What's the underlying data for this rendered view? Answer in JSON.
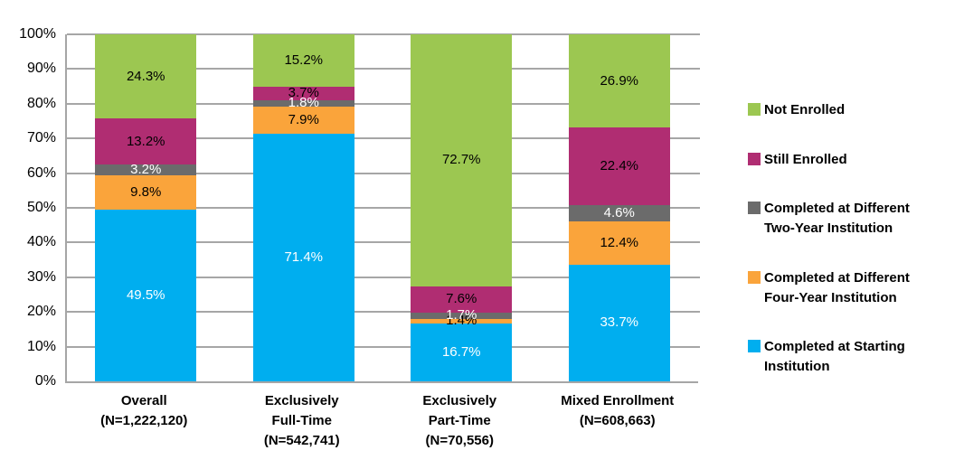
{
  "chart_data": {
    "type": "bar",
    "variant": "stacked-100-percent",
    "title": "",
    "xlabel": "",
    "ylabel": "",
    "grid": true,
    "legend_position": "right",
    "y_axis": {
      "min": 0,
      "max": 100,
      "step": 10,
      "tick_labels": [
        "0%",
        "10%",
        "20%",
        "30%",
        "40%",
        "50%",
        "60%",
        "70%",
        "80%",
        "90%",
        "100%"
      ]
    },
    "categories": [
      {
        "label_lines": [
          "Overall",
          "(N=1,222,120)"
        ]
      },
      {
        "label_lines": [
          "Exclusively",
          "Full-Time",
          "(N=542,741)"
        ]
      },
      {
        "label_lines": [
          "Exclusively",
          "Part-Time",
          "(N=70,556)"
        ]
      },
      {
        "label_lines": [
          "Mixed Enrollment",
          "(N=608,663)"
        ]
      }
    ],
    "series": [
      {
        "name": "Completed at Starting Institution",
        "color": "#00AEEF",
        "label_color": "#FFFFFF",
        "values": [
          49.5,
          71.4,
          16.7,
          33.7
        ],
        "labels": [
          "49.5%",
          "71.4%",
          "16.7%",
          "33.7%"
        ]
      },
      {
        "name": "Completed at Different Four-Year Institution",
        "color": "#FAA43B",
        "label_color": "#000000",
        "values": [
          9.8,
          7.9,
          1.4,
          12.4
        ],
        "labels": [
          "9.8%",
          "7.9%",
          "1.4%",
          "12.4%"
        ]
      },
      {
        "name": "Completed at Different Two-Year Institution",
        "color": "#6B6B6B",
        "label_color": "#FFFFFF",
        "values": [
          3.2,
          1.8,
          1.7,
          4.6
        ],
        "labels": [
          "3.2%",
          "1.8%",
          "1.7%",
          "4.6%"
        ]
      },
      {
        "name": "Still Enrolled",
        "color": "#B02D72",
        "label_color": "#000000",
        "values": [
          13.2,
          3.7,
          7.6,
          22.4
        ],
        "labels": [
          "13.2%",
          "3.7%",
          "7.6%",
          "22.4%"
        ]
      },
      {
        "name": "Not Enrolled",
        "color": "#9CC751",
        "label_color": "#000000",
        "values": [
          24.3,
          15.2,
          72.7,
          26.9
        ],
        "labels": [
          "24.3%",
          "15.2%",
          "72.7%",
          "26.9%"
        ]
      }
    ],
    "legend": [
      {
        "series": "Not Enrolled",
        "color": "#9CC751",
        "label_lines": [
          "Not Enrolled"
        ]
      },
      {
        "series": "Still Enrolled",
        "color": "#B02D72",
        "label_lines": [
          "Still Enrolled"
        ]
      },
      {
        "series": "Completed at Different Two-Year Institution",
        "color": "#6B6B6B",
        "label_lines": [
          "Completed at Different",
          "Two-Year Institution"
        ]
      },
      {
        "series": "Completed at Different Four-Year Institution",
        "color": "#FAA43B",
        "label_lines": [
          "Completed at Different",
          "Four-Year Institution"
        ]
      },
      {
        "series": "Completed at Starting Institution",
        "color": "#00AEEF",
        "label_lines": [
          "Completed at Starting",
          "Institution"
        ]
      }
    ],
    "colors": {
      "gridline": "#A6A6A6",
      "axis_line": "#A6A6A6",
      "text": "#000000",
      "background": "#FFFFFF"
    }
  }
}
